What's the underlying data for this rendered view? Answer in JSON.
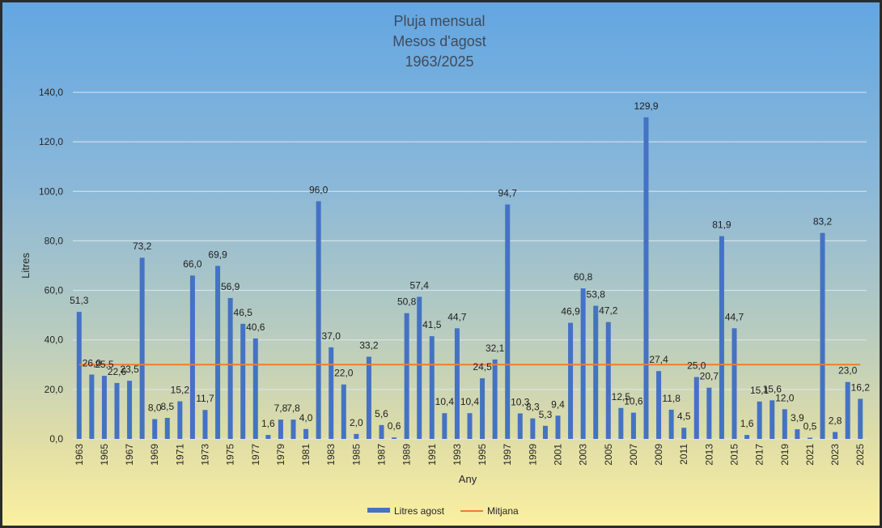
{
  "chart_data": {
    "type": "bar",
    "title": [
      "Pluja mensual",
      "Mesos d'agost",
      "1963/2025"
    ],
    "xlabel": "Any",
    "ylabel": "Litres",
    "ylim": [
      0,
      140
    ],
    "y_ticks": [
      "0,0",
      "20,0",
      "40,0",
      "60,0",
      "80,0",
      "100,0",
      "120,0",
      "140,0"
    ],
    "y_tick_values": [
      0,
      20,
      40,
      60,
      80,
      100,
      120,
      140
    ],
    "grid": true,
    "legend_position": "bottom",
    "categories": [
      "1963",
      "1964",
      "1965",
      "1966",
      "1967",
      "1968",
      "1969",
      "1970",
      "1971",
      "1972",
      "1973",
      "1974",
      "1975",
      "1976",
      "1977",
      "1978",
      "1979",
      "1980",
      "1981",
      "1982",
      "1983",
      "1984",
      "1985",
      "1986",
      "1987",
      "1988",
      "1989",
      "1990",
      "1991",
      "1992",
      "1993",
      "1994",
      "1995",
      "1996",
      "1997",
      "1998",
      "1999",
      "2000",
      "2001",
      "2002",
      "2003",
      "2004",
      "2005",
      "2006",
      "2007",
      "2008",
      "2009",
      "2010",
      "2011",
      "2012",
      "2013",
      "2014",
      "2015",
      "2016",
      "2017",
      "2018",
      "2019",
      "2020",
      "2021",
      "2022",
      "2023",
      "2024",
      "2025"
    ],
    "x_tick_labels": [
      "1963",
      "1965",
      "1967",
      "1969",
      "1971",
      "1973",
      "1975",
      "1977",
      "1979",
      "1981",
      "1983",
      "1985",
      "1987",
      "1989",
      "1991",
      "1993",
      "1995",
      "1997",
      "1999",
      "2001",
      "2003",
      "2005",
      "2007",
      "2009",
      "2011",
      "2013",
      "2015",
      "2017",
      "2019",
      "2021",
      "2023",
      "2025"
    ],
    "series": [
      {
        "name": "Litres agost",
        "type": "bar",
        "color": "#4472c4",
        "values": [
          51.3,
          26.0,
          25.5,
          22.6,
          23.5,
          73.2,
          8.0,
          8.5,
          15.2,
          66.0,
          11.7,
          69.9,
          56.9,
          46.5,
          40.6,
          1.6,
          7.8,
          7.8,
          4.0,
          96.0,
          37.0,
          22.0,
          2.0,
          33.2,
          5.6,
          0.6,
          50.8,
          57.4,
          41.5,
          10.4,
          44.7,
          10.4,
          24.5,
          32.1,
          94.7,
          10.3,
          8.3,
          5.3,
          9.4,
          46.9,
          60.8,
          53.8,
          47.2,
          12.5,
          10.6,
          129.9,
          27.4,
          11.8,
          4.5,
          25.0,
          20.7,
          81.9,
          44.7,
          1.6,
          15.1,
          15.6,
          12.0,
          3.9,
          0.5,
          83.2,
          2.8,
          23.0,
          16.2
        ],
        "labels": [
          "51,3",
          "26,0",
          "25,5",
          "22,6",
          "23,5",
          "73,2",
          "8,0",
          "8,5",
          "15,2",
          "66,0",
          "11,7",
          "69,9",
          "56,9",
          "46,5",
          "40,6",
          "1,6",
          "7,8",
          "7,8",
          "4,0",
          "96,0",
          "37,0",
          "22,0",
          "2,0",
          "33,2",
          "5,6",
          "0,6",
          "50,8",
          "57,4",
          "41,5",
          "10,4",
          "44,7",
          "10,4",
          "24,5",
          "32,1",
          "94,7",
          "10,3",
          "8,3",
          "5,3",
          "9,4",
          "46,9",
          "60,8",
          "53,8",
          "47,2",
          "12,5",
          "10,6",
          "129,9",
          "27,4",
          "11,8",
          "4,5",
          "25,0",
          "20,7",
          "81,9",
          "44,7",
          "1,6",
          "15,1",
          "15,6",
          "12,0",
          "3,9",
          "0,5",
          "83,2",
          "2,8",
          "23,0",
          "16,2"
        ]
      },
      {
        "name": "Mitjana",
        "type": "line",
        "color": "#ed7d31",
        "value": 30.0
      }
    ]
  }
}
